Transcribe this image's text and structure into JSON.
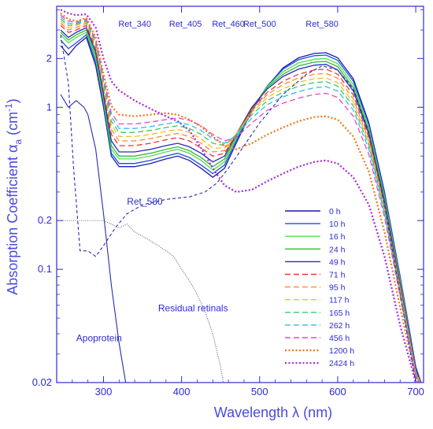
{
  "chart_data": {
    "type": "line",
    "title": "",
    "xlabel": "Wavelength  λ  (nm)",
    "ylabel_main": "Absorption Coefficient  α",
    "ylabel_sub": "a",
    "ylabel_unit": " (cm",
    "ylabel_exp": "-1",
    "ylabel_close": ")",
    "xlim": [
      240,
      710
    ],
    "ylim": [
      0.02,
      4.2
    ],
    "yscale": "log",
    "grid": false,
    "legend_position": "lower-right (inside)",
    "x_ticks": [
      300,
      400,
      500,
      600,
      700
    ],
    "x_tick_labels": [
      "300",
      "400",
      "500",
      "600",
      "700"
    ],
    "y_ticks": [
      0.02,
      0.1,
      0.2,
      1,
      2
    ],
    "y_tick_labels": [
      "0.02",
      "0.1",
      "0.2",
      "1",
      "2"
    ],
    "retinal_markers": [
      {
        "label": "Ret_340",
        "x": 340
      },
      {
        "label": "Ret_405",
        "x": 405
      },
      {
        "label": "Ret_460",
        "x": 460
      },
      {
        "label": "Ret_500",
        "x": 500
      },
      {
        "label": "Ret_580",
        "x": 580
      }
    ],
    "x": [
      245,
      255,
      265,
      278,
      290,
      300,
      310,
      320,
      340,
      360,
      380,
      395,
      410,
      425,
      440,
      455,
      470,
      490,
      510,
      530,
      550,
      570,
      585,
      600,
      620,
      640,
      660,
      680,
      700,
      710
    ],
    "series": [
      {
        "name": "0 h",
        "color": "#1a1ab4",
        "dash": "solid",
        "values": [
          2.4,
          2.1,
          2.4,
          2.7,
          1.8,
          1.0,
          0.5,
          0.43,
          0.43,
          0.45,
          0.48,
          0.5,
          0.47,
          0.42,
          0.37,
          0.42,
          0.6,
          0.95,
          1.35,
          1.75,
          2.02,
          2.15,
          2.17,
          2.02,
          1.5,
          0.8,
          0.3,
          0.09,
          0.025,
          0.018
        ]
      },
      {
        "name": "10 h",
        "color": "#1f4fd8",
        "dash": "solid",
        "values": [
          2.6,
          2.3,
          2.5,
          2.8,
          1.9,
          1.05,
          0.52,
          0.45,
          0.45,
          0.47,
          0.5,
          0.52,
          0.49,
          0.44,
          0.39,
          0.44,
          0.62,
          0.97,
          1.36,
          1.72,
          1.97,
          2.08,
          2.1,
          1.95,
          1.45,
          0.78,
          0.29,
          0.09,
          0.025,
          0.018
        ]
      },
      {
        "name": "16 h",
        "color": "#55dd55",
        "dash": "solid",
        "values": [
          2.8,
          2.5,
          2.7,
          2.9,
          2.0,
          1.1,
          0.55,
          0.48,
          0.48,
          0.5,
          0.53,
          0.55,
          0.52,
          0.47,
          0.41,
          0.46,
          0.64,
          0.98,
          1.35,
          1.66,
          1.88,
          1.98,
          2.0,
          1.86,
          1.38,
          0.74,
          0.28,
          0.085,
          0.024,
          0.018
        ]
      },
      {
        "name": "24 h",
        "color": "#33bb33",
        "dash": "solid",
        "values": [
          2.9,
          2.6,
          2.8,
          3.0,
          2.1,
          1.15,
          0.58,
          0.5,
          0.5,
          0.52,
          0.55,
          0.57,
          0.54,
          0.49,
          0.43,
          0.48,
          0.66,
          0.99,
          1.33,
          1.6,
          1.8,
          1.9,
          1.92,
          1.78,
          1.32,
          0.71,
          0.27,
          0.082,
          0.024,
          0.018
        ]
      },
      {
        "name": "49 h",
        "color": "#2a2ab8",
        "dash": "solid",
        "values": [
          3.0,
          2.7,
          2.9,
          3.1,
          2.2,
          1.2,
          0.62,
          0.53,
          0.53,
          0.55,
          0.58,
          0.6,
          0.57,
          0.52,
          0.46,
          0.5,
          0.68,
          1.0,
          1.3,
          1.55,
          1.72,
          1.82,
          1.84,
          1.7,
          1.26,
          0.68,
          0.26,
          0.08,
          0.024,
          0.018
        ]
      },
      {
        "name": "71 h",
        "color": "#ee3333",
        "dash": "dashed",
        "values": [
          3.2,
          2.9,
          3.0,
          3.2,
          2.3,
          1.27,
          0.68,
          0.58,
          0.58,
          0.6,
          0.63,
          0.65,
          0.62,
          0.56,
          0.5,
          0.52,
          0.68,
          0.97,
          1.24,
          1.45,
          1.6,
          1.7,
          1.72,
          1.6,
          1.19,
          0.65,
          0.25,
          0.078,
          0.023,
          0.018
        ]
      },
      {
        "name": "95 h",
        "color": "#ff8833",
        "dash": "dashed",
        "values": [
          3.3,
          3.0,
          3.1,
          3.3,
          2.4,
          1.33,
          0.73,
          0.62,
          0.62,
          0.64,
          0.67,
          0.69,
          0.66,
          0.6,
          0.53,
          0.54,
          0.68,
          0.95,
          1.2,
          1.38,
          1.52,
          1.6,
          1.62,
          1.51,
          1.13,
          0.62,
          0.24,
          0.076,
          0.023,
          0.018
        ]
      },
      {
        "name": "117 h",
        "color": "#ffbb22",
        "dash": "dashed",
        "values": [
          3.4,
          3.1,
          3.2,
          3.35,
          2.45,
          1.38,
          0.78,
          0.66,
          0.66,
          0.68,
          0.71,
          0.73,
          0.7,
          0.64,
          0.56,
          0.56,
          0.68,
          0.93,
          1.15,
          1.3,
          1.43,
          1.5,
          1.52,
          1.42,
          1.07,
          0.6,
          0.235,
          0.074,
          0.023,
          0.018
        ]
      },
      {
        "name": "165 h",
        "color": "#33cc66",
        "dash": "dashed",
        "values": [
          3.5,
          3.2,
          3.25,
          3.4,
          2.5,
          1.42,
          0.82,
          0.7,
          0.7,
          0.72,
          0.75,
          0.77,
          0.74,
          0.68,
          0.6,
          0.58,
          0.68,
          0.9,
          1.1,
          1.24,
          1.35,
          1.42,
          1.44,
          1.35,
          1.02,
          0.58,
          0.23,
          0.072,
          0.022,
          0.018
        ]
      },
      {
        "name": "262 h",
        "color": "#33bbee",
        "dash": "dashed",
        "values": [
          3.6,
          3.3,
          3.3,
          3.45,
          2.55,
          1.47,
          0.87,
          0.74,
          0.74,
          0.76,
          0.79,
          0.81,
          0.78,
          0.72,
          0.64,
          0.6,
          0.67,
          0.86,
          1.04,
          1.16,
          1.25,
          1.32,
          1.34,
          1.26,
          0.96,
          0.55,
          0.22,
          0.07,
          0.022,
          0.018
        ]
      },
      {
        "name": "456 h",
        "color": "#ee44cc",
        "dash": "dashed",
        "values": [
          3.7,
          3.4,
          3.35,
          3.5,
          2.6,
          1.52,
          0.92,
          0.79,
          0.79,
          0.81,
          0.84,
          0.86,
          0.83,
          0.77,
          0.68,
          0.62,
          0.65,
          0.8,
          0.96,
          1.06,
          1.14,
          1.2,
          1.22,
          1.15,
          0.88,
          0.51,
          0.21,
          0.068,
          0.022,
          0.018
        ]
      },
      {
        "name": "1200 h",
        "color": "#ee7711",
        "dash": "dotted",
        "values": [
          3.8,
          3.5,
          3.4,
          3.55,
          2.7,
          1.6,
          1.02,
          0.9,
          0.88,
          0.9,
          0.92,
          0.9,
          0.84,
          0.76,
          0.66,
          0.58,
          0.55,
          0.6,
          0.68,
          0.75,
          0.82,
          0.87,
          0.88,
          0.84,
          0.66,
          0.4,
          0.17,
          0.058,
          0.021,
          0.018
        ]
      },
      {
        "name": "2424 h",
        "color": "#aa22dd",
        "dash": "dotted",
        "values": [
          4.0,
          3.8,
          3.7,
          3.75,
          3.1,
          2.0,
          1.45,
          1.27,
          1.1,
          0.98,
          0.88,
          0.82,
          0.72,
          0.56,
          0.42,
          0.33,
          0.3,
          0.31,
          0.35,
          0.39,
          0.43,
          0.46,
          0.47,
          0.45,
          0.37,
          0.25,
          0.12,
          0.045,
          0.02,
          0.018
        ]
      }
    ],
    "component_spectra": [
      {
        "label": "Apoprotein",
        "color": "#2a2ab8",
        "dash": "solid",
        "x": [
          245,
          255,
          265,
          275,
          280,
          290,
          300,
          310,
          320,
          330
        ],
        "values": [
          1.2,
          1.0,
          1.1,
          1.0,
          0.9,
          0.55,
          0.22,
          0.08,
          0.035,
          0.018
        ]
      },
      {
        "label": "Ret_580",
        "color": "#2a2ab8",
        "dash": "dashed",
        "x": [
          245,
          255,
          262,
          270,
          280,
          290,
          300,
          315,
          330,
          350,
          380,
          410,
          430,
          445,
          460,
          480,
          500,
          530,
          560,
          580,
          600,
          620,
          640,
          660,
          680,
          700
        ],
        "values": [
          2.8,
          1.4,
          0.4,
          0.13,
          0.13,
          0.12,
          0.14,
          0.18,
          0.22,
          0.25,
          0.27,
          0.28,
          0.3,
          0.34,
          0.42,
          0.58,
          0.8,
          1.2,
          1.6,
          1.8,
          1.7,
          1.3,
          0.7,
          0.25,
          0.07,
          0.02
        ]
      },
      {
        "label": "Residual retinals",
        "color": "#555577",
        "dash": "dotted",
        "x": [
          300,
          310,
          320,
          330,
          340,
          350,
          360,
          370,
          380,
          390,
          400,
          410,
          420,
          430,
          440,
          450,
          455
        ],
        "values": [
          0.2,
          0.19,
          0.18,
          0.19,
          0.17,
          0.16,
          0.15,
          0.14,
          0.13,
          0.12,
          0.1,
          0.085,
          0.07,
          0.055,
          0.04,
          0.025,
          0.018
        ]
      }
    ],
    "reference_line": {
      "y": 0.2,
      "color": "#555577"
    }
  }
}
